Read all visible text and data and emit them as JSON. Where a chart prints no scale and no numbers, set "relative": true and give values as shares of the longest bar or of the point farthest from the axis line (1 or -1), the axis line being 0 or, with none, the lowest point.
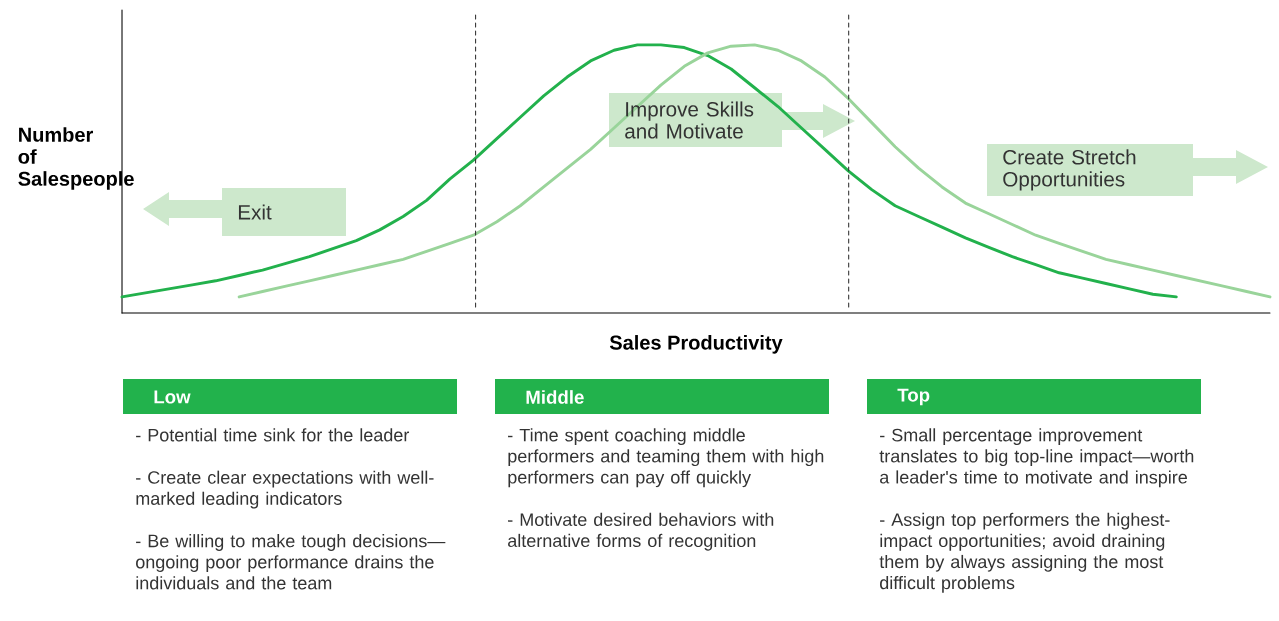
{
  "chart_data": [
    {
      "type": "line",
      "relative": true,
      "xlabel": "Sales Productivity",
      "ylabel": "Number of Salespeople",
      "categories": [
        null,
        null,
        null,
        null,
        null,
        null,
        null,
        null,
        null,
        null,
        null,
        null,
        null,
        null,
        null,
        null,
        null,
        null,
        null,
        null,
        null,
        null,
        null,
        null,
        null,
        null,
        null,
        null,
        null,
        null,
        null,
        null,
        null,
        null,
        null,
        null,
        null,
        null,
        null,
        null,
        null,
        null,
        null,
        null,
        null,
        null,
        null,
        null,
        null,
        null
      ],
      "series": [
        {
          "color": "#22b14c",
          "values": [
            0.06,
            0.075,
            0.09,
            0.105,
            0.12,
            0.14,
            0.16,
            0.185,
            0.21,
            0.24,
            0.27,
            0.31,
            0.36,
            0.42,
            0.5,
            0.57,
            0.65,
            0.73,
            0.81,
            0.88,
            0.94,
            0.98,
            1.0,
            1.0,
            0.99,
            0.96,
            0.91,
            0.84,
            0.77,
            0.69,
            0.61,
            0.53,
            0.46,
            0.4,
            0.36,
            0.32,
            0.28,
            0.245,
            0.21,
            0.18,
            0.15,
            0.13,
            0.11,
            0.09,
            0.07,
            0.06,
            null,
            null,
            null,
            null
          ]
        },
        {
          "color": "#99d49a",
          "values": [
            null,
            null,
            null,
            null,
            null,
            0.06,
            0.08,
            0.1,
            0.12,
            0.14,
            0.16,
            0.18,
            0.2,
            0.23,
            0.26,
            0.29,
            0.34,
            0.4,
            0.47,
            0.54,
            0.61,
            0.69,
            0.77,
            0.85,
            0.92,
            0.97,
            0.995,
            1.0,
            0.98,
            0.94,
            0.88,
            0.8,
            0.71,
            0.62,
            0.54,
            0.47,
            0.41,
            0.37,
            0.33,
            0.29,
            0.26,
            0.23,
            0.2,
            0.18,
            0.16,
            0.14,
            0.12,
            0.1,
            0.08,
            0.06
          ]
        }
      ],
      "annotations": [
        "Exit",
        "Improve Skills and Motivate",
        "Create Stretch Opportunities"
      ]
    },
    {
      "type": "other",
      "title": "Low",
      "annotations": [
        "- Potential time sink for the leader",
        "- Create clear expectations with well-marked leading indicators",
        "- Be willing to make tough decisions—ongoing poor performance drains the individuals and the team"
      ]
    },
    {
      "type": "other",
      "title": "Middle",
      "annotations": [
        "- Time spent coaching middle performers and teaming them with high performers can pay off quickly",
        "- Motivate desired behaviors with alternative forms of recognition"
      ]
    },
    {
      "type": "other",
      "title": "Top",
      "annotations": [
        "- Small percentage improvement translates to big top-line impact—worth a leader's time to motivate and inspire",
        "- Assign top performers the highest-impact opportunities; avoid draining them by always assigning the most difficult problems"
      ]
    }
  ]
}
